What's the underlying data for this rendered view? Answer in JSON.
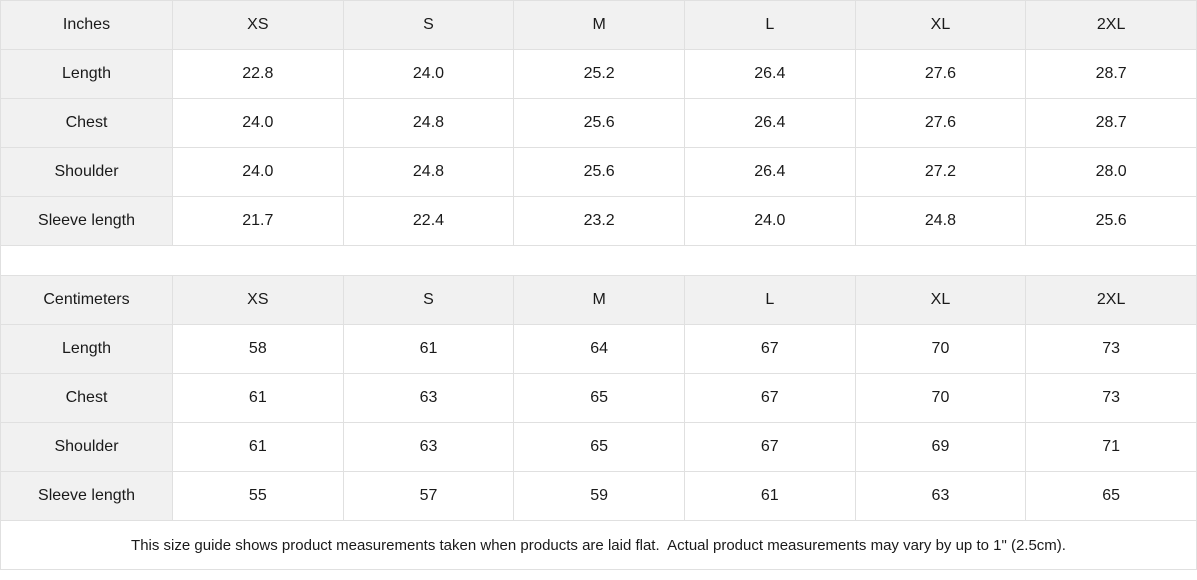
{
  "colors": {
    "header_bg": "#f1f1f1",
    "border": "#e0e0e0",
    "cell_bg": "#ffffff",
    "text": "#1a1a1a"
  },
  "tables": [
    {
      "unit_label": "Inches",
      "sizes": [
        "XS",
        "S",
        "M",
        "L",
        "XL",
        "2XL"
      ],
      "rows": [
        {
          "label": "Length",
          "values": [
            "22.8",
            "24.0",
            "25.2",
            "26.4",
            "27.6",
            "28.7"
          ]
        },
        {
          "label": "Chest",
          "values": [
            "24.0",
            "24.8",
            "25.6",
            "26.4",
            "27.6",
            "28.7"
          ]
        },
        {
          "label": "Shoulder",
          "values": [
            "24.0",
            "24.8",
            "25.6",
            "26.4",
            "27.2",
            "28.0"
          ]
        },
        {
          "label": "Sleeve length",
          "values": [
            "21.7",
            "22.4",
            "23.2",
            "24.0",
            "24.8",
            "25.6"
          ]
        }
      ]
    },
    {
      "unit_label": "Centimeters",
      "sizes": [
        "XS",
        "S",
        "M",
        "L",
        "XL",
        "2XL"
      ],
      "rows": [
        {
          "label": "Length",
          "values": [
            "58",
            "61",
            "64",
            "67",
            "70",
            "73"
          ]
        },
        {
          "label": "Chest",
          "values": [
            "61",
            "63",
            "65",
            "67",
            "70",
            "73"
          ]
        },
        {
          "label": "Shoulder",
          "values": [
            "61",
            "63",
            "65",
            "67",
            "69",
            "71"
          ]
        },
        {
          "label": "Sleeve length",
          "values": [
            "55",
            "57",
            "59",
            "61",
            "63",
            "65"
          ]
        }
      ]
    }
  ],
  "footer_note": "This size guide shows product measurements taken when products are laid flat.  Actual product measurements may vary by up to 1\" (2.5cm)."
}
